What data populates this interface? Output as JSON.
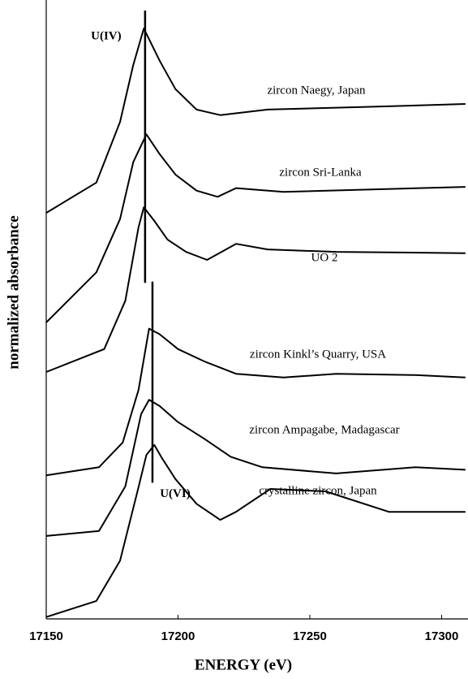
{
  "chart_data": {
    "type": "line",
    "xlabel": "ENERGY (eV)",
    "ylabel": "normalized absorbance",
    "xlim": [
      17150,
      17310
    ],
    "ylim": [
      0,
      100
    ],
    "xticks": [
      17150,
      17200,
      17250,
      17300
    ],
    "grid": false,
    "series": [
      {
        "name": "crystalline zircon, Japan",
        "color": "#000000",
        "x": [
          17150,
          17169,
          17178,
          17185,
          17188,
          17191,
          17194,
          17199,
          17207,
          17216,
          17222,
          17235,
          17256,
          17280,
          17309
        ],
        "values": [
          0.3,
          2.9,
          9.4,
          21.3,
          26.5,
          28.1,
          25.9,
          22.6,
          18.6,
          16.0,
          17.3,
          21.0,
          20.6,
          17.3,
          17.3
        ]
      },
      {
        "name": "zircon Ampagabe, Madagascar",
        "color": "#000000",
        "x": [
          17150,
          17170,
          17180,
          17186,
          17189,
          17193,
          17200,
          17210,
          17220,
          17232,
          17260,
          17290,
          17309
        ],
        "values": [
          13.4,
          14.2,
          21.4,
          33.1,
          35.4,
          34.4,
          31.8,
          29.1,
          26.2,
          24.5,
          23.5,
          24.5,
          24.1
        ]
      },
      {
        "name": "zircon Kinkl’s Quarry, USA",
        "color": "#000000",
        "x": [
          17150,
          17170,
          17179,
          17185,
          17189,
          17193,
          17200,
          17210,
          17222,
          17240,
          17260,
          17290,
          17309
        ],
        "values": [
          23.2,
          24.5,
          28.5,
          37.0,
          46.9,
          46.0,
          43.6,
          41.6,
          39.6,
          39.0,
          39.6,
          39.4,
          39.0
        ]
      },
      {
        "name": "UO 2",
        "color": "#000000",
        "x": [
          17150,
          17172,
          17180,
          17185,
          17187,
          17191,
          17196,
          17203,
          17211,
          17222,
          17234,
          17260,
          17309
        ],
        "values": [
          39.9,
          43.6,
          51.4,
          63.3,
          66.5,
          64.3,
          61.3,
          59.3,
          58.0,
          60.6,
          59.7,
          59.3,
          59.1
        ]
      },
      {
        "name": "zircon Sri-Lanka",
        "color": "#000000",
        "x": [
          17150,
          17169,
          17178,
          17183,
          17188,
          17193,
          17199,
          17207,
          17215,
          17222,
          17240,
          17309
        ],
        "values": [
          47.9,
          56.0,
          64.6,
          73.8,
          78.3,
          75.1,
          71.8,
          69.2,
          68.2,
          69.6,
          69.0,
          69.8
        ]
      },
      {
        "name": "zircon Naegy, Japan",
        "color": "#000000",
        "x": [
          17150,
          17169,
          17178,
          17183,
          17187,
          17193,
          17199,
          17207,
          17216,
          17234,
          17270,
          17309
        ],
        "values": [
          65.6,
          70.5,
          80.3,
          89.5,
          95.4,
          90.2,
          85.6,
          82.3,
          81.4,
          82.3,
          82.7,
          83.2
        ]
      }
    ],
    "annotations": [
      {
        "text": "U(IV)",
        "x": 17187.5,
        "y": [
          54.3,
          98.3
        ]
      },
      {
        "text": "U(VI)",
        "x": 17190.3,
        "y": [
          22.0,
          54.5
        ]
      }
    ]
  }
}
